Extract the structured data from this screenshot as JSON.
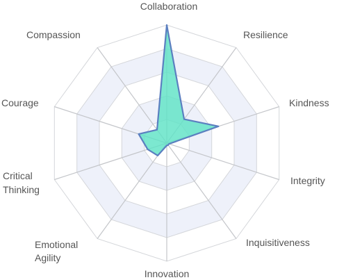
{
  "chart_data": {
    "type": "radar",
    "title": "",
    "categories": [
      "Collaboration",
      "Resilience",
      "Kindness",
      "Integrity",
      "Inquisitiveness",
      "Innovation",
      "Emotional Agility",
      "Critical Thinking",
      "Courage",
      "Compassion"
    ],
    "series": [
      {
        "values": [
          10,
          2.5,
          4.6,
          0.2,
          0.2,
          0.2,
          1.3,
          1.7,
          2.5,
          1.4
        ]
      }
    ],
    "rmax": 10,
    "rings": 5,
    "grid": true,
    "legend": "none",
    "colors": {
      "fill": "#5fe3c6",
      "stroke": "#5b7fc0",
      "grid": "#d4d6da",
      "band": "#eef1fa",
      "label": "#555555"
    }
  }
}
